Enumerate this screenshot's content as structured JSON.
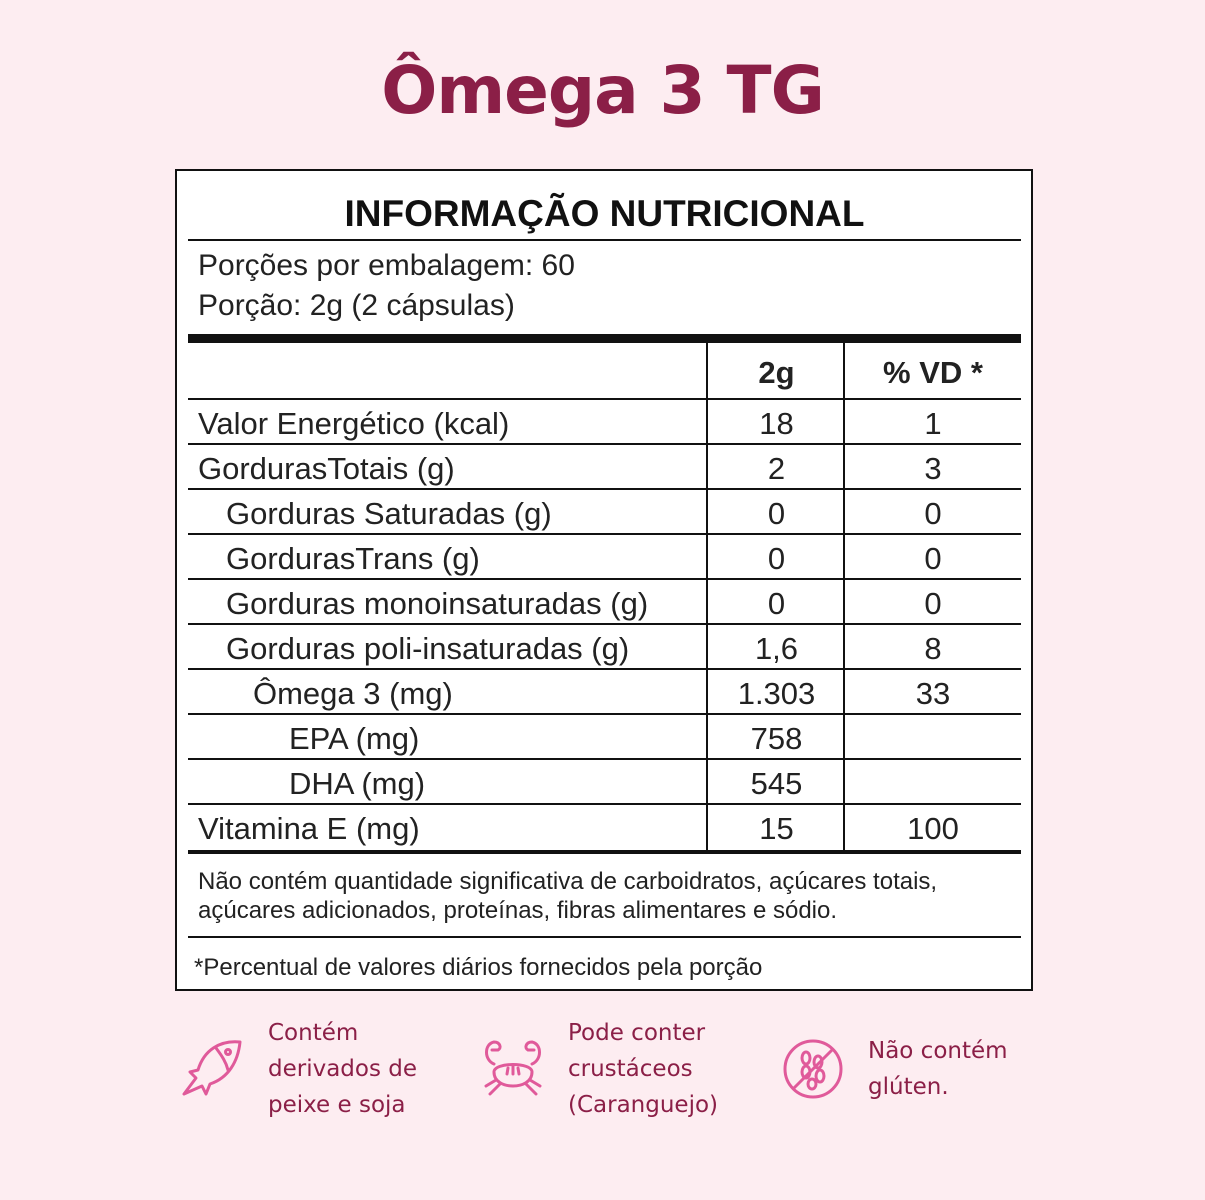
{
  "product_title": "Ômega 3 TG",
  "label": {
    "heading": "INFORMAÇÃO NUTRICIONAL",
    "servings_per_package": "Porções por embalagem: 60",
    "serving_size": "Porção: 2g (2 cápsulas)",
    "columns": [
      "",
      "2g",
      "% VD *"
    ],
    "rows": [
      {
        "name": "Valor Energético (kcal)",
        "amount": "18",
        "dv": "1",
        "indent": 0
      },
      {
        "name": "GordurasTotais (g)",
        "amount": "2",
        "dv": "3",
        "indent": 0
      },
      {
        "name": "Gorduras Saturadas (g)",
        "amount": "0",
        "dv": "0",
        "indent": 1
      },
      {
        "name": "GordurasTrans (g)",
        "amount": "0",
        "dv": "0",
        "indent": 1
      },
      {
        "name": "Gorduras monoinsaturadas (g)",
        "amount": "0",
        "dv": "0",
        "indent": 1
      },
      {
        "name": "Gorduras poli-insaturadas (g)",
        "amount": "1,6",
        "dv": "8",
        "indent": 1
      },
      {
        "name": "Ômega 3 (mg)",
        "amount": "1.303",
        "dv": "33",
        "indent": 2
      },
      {
        "name": "EPA (mg)",
        "amount": "758",
        "dv": "",
        "indent": 3
      },
      {
        "name": "DHA (mg)",
        "amount": "545",
        "dv": "",
        "indent": 3
      },
      {
        "name": "Vitamina E (mg)",
        "amount": "15",
        "dv": "100",
        "indent": 0
      }
    ],
    "footnote_line1": "Não contém quantidade significativa de carboidratos, açúcares totais,",
    "footnote_line2": "açúcares adicionados, proteínas, fibras alimentares e sódio.",
    "dv_note": "*Percentual de valores diários fornecidos pela porção"
  },
  "badges": [
    {
      "icon": "fish-icon",
      "lines": [
        "Contém",
        "derivados de",
        "peixe e soja"
      ]
    },
    {
      "icon": "crab-icon",
      "lines": [
        "Pode conter",
        "crustáceos",
        "(Caranguejo)"
      ]
    },
    {
      "icon": "no-gluten-icon",
      "lines": [
        "Não contém",
        "glúten."
      ]
    }
  ],
  "colors": {
    "title": "#8b1f47",
    "icon": "#e05a9a",
    "background": "#fdedf1"
  }
}
